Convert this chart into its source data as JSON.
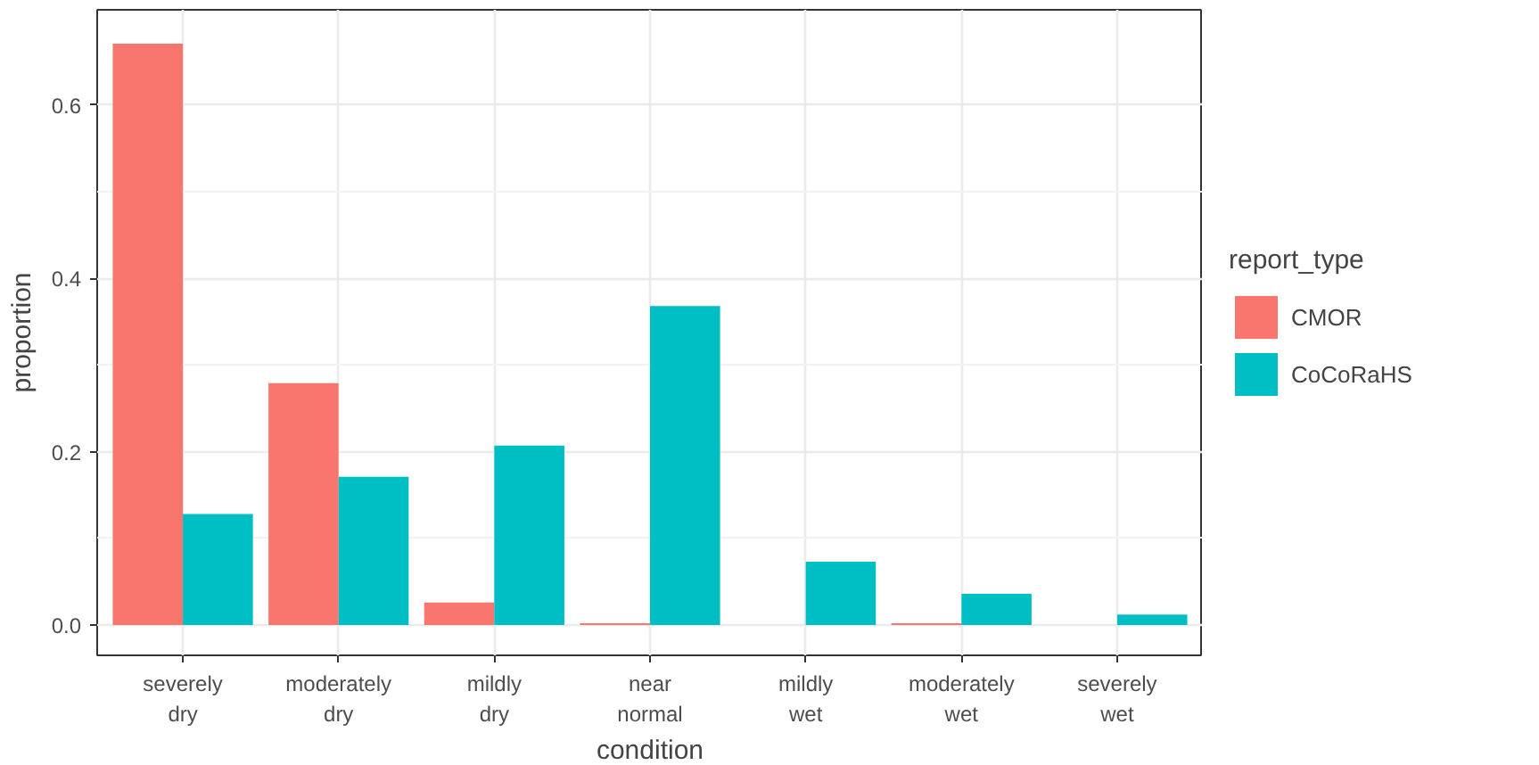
{
  "chart_data": {
    "type": "bar",
    "xlabel": "condition",
    "ylabel": "proportion",
    "legend_title": "report_type",
    "categories": [
      "severely dry",
      "moderately dry",
      "mildly dry",
      "near normal",
      "mildly wet",
      "moderately wet",
      "severely wet"
    ],
    "series": [
      {
        "name": "CMOR",
        "color": "#f8766d",
        "values": [
          0.671,
          0.279,
          0.026,
          0.002,
          0,
          0.002,
          0
        ]
      },
      {
        "name": "CoCoRaHS",
        "color": "#00bfc4",
        "values": [
          0.128,
          0.171,
          0.207,
          0.368,
          0.073,
          0.036,
          0.012
        ]
      }
    ],
    "ylim": [
      -0.035,
      0.71
    ],
    "yticks": [
      {
        "value": 0,
        "label": "0.0"
      },
      {
        "value": 0.2,
        "label": "0.2"
      },
      {
        "value": 0.4,
        "label": "0.4"
      },
      {
        "value": 0.6,
        "label": "0.6"
      }
    ],
    "grid": true,
    "legend": "right"
  }
}
